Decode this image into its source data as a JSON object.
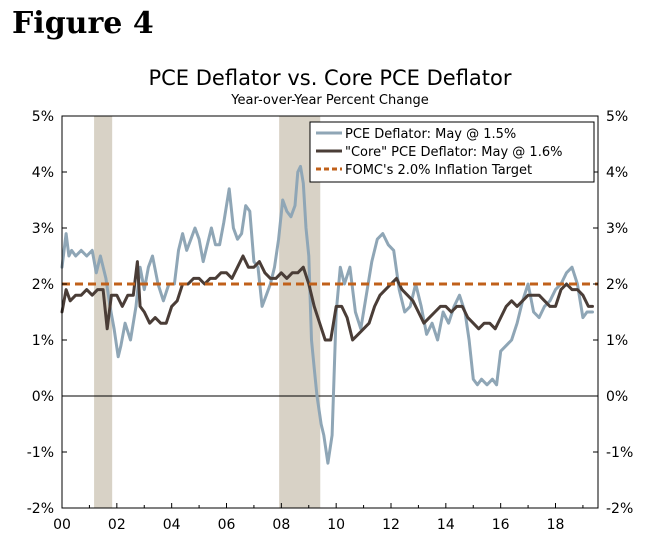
{
  "figure_label": "Figure 4",
  "colors": {
    "pce": "#8fa6b6",
    "core": "#4a3d37",
    "target": "#c0601a",
    "recession": "#d8d2c6",
    "axis": "#000000"
  },
  "chart_data": {
    "type": "line",
    "title": "PCE Deflator vs. Core PCE Deflator",
    "subtitle": "Year-over-Year Percent Change",
    "xlabel": "",
    "ylabel": "",
    "xlim": [
      2000.0,
      2019.55
    ],
    "ylim": [
      -2,
      5
    ],
    "y_ticks": [
      5,
      4,
      3,
      2,
      1,
      0,
      -1,
      -2
    ],
    "y_tick_labels_left": [
      "5%",
      "4%",
      "3%",
      "2%",
      "1%",
      "0%",
      "-1%",
      "-2%"
    ],
    "y_tick_labels_right": [
      "5%",
      "4%",
      "3%",
      "2%",
      "1%",
      "0%",
      "-1%",
      "-2%"
    ],
    "x_ticks": [
      2000,
      2002,
      2004,
      2006,
      2008,
      2010,
      2012,
      2014,
      2016,
      2018
    ],
    "x_tick_labels": [
      "00",
      "02",
      "04",
      "06",
      "08",
      "10",
      "12",
      "14",
      "16",
      "18"
    ],
    "recessions": [
      [
        2001.17,
        2001.83
      ],
      [
        2007.92,
        2009.42
      ]
    ],
    "legend": {
      "position": "top-right",
      "entries": [
        {
          "key": "pce",
          "label": "PCE Deflator: May @ 1.5%"
        },
        {
          "key": "core",
          "label": "\"Core\" PCE Deflator: May @ 1.6%"
        },
        {
          "key": "target",
          "label": "FOMC's 2.0% Inflation Target"
        }
      ]
    },
    "series": [
      {
        "key": "pce",
        "name": "PCE Deflator",
        "x": [
          2000.0,
          2000.15,
          2000.25,
          2000.35,
          2000.5,
          2000.7,
          2000.9,
          2001.1,
          2001.25,
          2001.4,
          2001.6,
          2001.75,
          2001.9,
          2002.05,
          2002.15,
          2002.3,
          2002.5,
          2002.7,
          2002.85,
          2003.0,
          2003.15,
          2003.3,
          2003.5,
          2003.7,
          2003.9,
          2004.1,
          2004.25,
          2004.4,
          2004.55,
          2004.7,
          2004.85,
          2005.0,
          2005.15,
          2005.3,
          2005.45,
          2005.6,
          2005.75,
          2005.9,
          2006.1,
          2006.25,
          2006.4,
          2006.55,
          2006.7,
          2006.85,
          2007.0,
          2007.15,
          2007.3,
          2007.45,
          2007.6,
          2007.75,
          2007.9,
          2008.05,
          2008.2,
          2008.35,
          2008.5,
          2008.6,
          2008.7,
          2008.8,
          2008.9,
          2009.0,
          2009.1,
          2009.2,
          2009.3,
          2009.45,
          2009.55,
          2009.7,
          2009.85,
          2010.0,
          2010.15,
          2010.3,
          2010.5,
          2010.7,
          2010.9,
          2011.1,
          2011.3,
          2011.5,
          2011.7,
          2011.9,
          2012.1,
          2012.3,
          2012.5,
          2012.7,
          2012.9,
          2013.1,
          2013.3,
          2013.5,
          2013.7,
          2013.9,
          2014.1,
          2014.3,
          2014.5,
          2014.7,
          2014.85,
          2015.0,
          2015.15,
          2015.3,
          2015.5,
          2015.7,
          2015.85,
          2016.0,
          2016.2,
          2016.4,
          2016.6,
          2016.8,
          2017.0,
          2017.2,
          2017.4,
          2017.6,
          2017.8,
          2018.0,
          2018.2,
          2018.4,
          2018.6,
          2018.8,
          2019.0,
          2019.15,
          2019.35
        ],
        "values": [
          2.3,
          2.9,
          2.5,
          2.6,
          2.5,
          2.6,
          2.5,
          2.6,
          2.2,
          2.5,
          2.1,
          1.6,
          1.2,
          0.7,
          0.9,
          1.3,
          1.0,
          1.6,
          2.3,
          1.9,
          2.3,
          2.5,
          2.0,
          1.7,
          2.0,
          2.0,
          2.6,
          2.9,
          2.6,
          2.8,
          3.0,
          2.8,
          2.4,
          2.7,
          3.0,
          2.7,
          2.7,
          3.1,
          3.7,
          3.0,
          2.8,
          2.9,
          3.4,
          3.3,
          2.4,
          2.3,
          1.6,
          1.8,
          2.0,
          2.3,
          2.8,
          3.5,
          3.3,
          3.2,
          3.4,
          4.0,
          4.1,
          3.8,
          3.0,
          2.5,
          1.0,
          0.5,
          0.0,
          -0.5,
          -0.7,
          -1.2,
          -0.7,
          1.5,
          2.3,
          2.0,
          2.3,
          1.5,
          1.2,
          1.8,
          2.4,
          2.8,
          2.9,
          2.7,
          2.6,
          1.9,
          1.5,
          1.6,
          2.0,
          1.6,
          1.1,
          1.3,
          1.0,
          1.5,
          1.3,
          1.6,
          1.8,
          1.5,
          1.0,
          0.3,
          0.2,
          0.3,
          0.2,
          0.3,
          0.2,
          0.8,
          0.9,
          1.0,
          1.3,
          1.7,
          2.0,
          1.5,
          1.4,
          1.6,
          1.7,
          1.9,
          2.0,
          2.2,
          2.3,
          2.0,
          1.4,
          1.5,
          1.5
        ]
      },
      {
        "key": "core",
        "name": "\"Core\" PCE Deflator",
        "x": [
          2000.0,
          2000.15,
          2000.3,
          2000.5,
          2000.7,
          2000.9,
          2001.1,
          2001.3,
          2001.5,
          2001.65,
          2001.8,
          2002.0,
          2002.2,
          2002.4,
          2002.6,
          2002.75,
          2002.85,
          2003.0,
          2003.2,
          2003.4,
          2003.6,
          2003.8,
          2004.0,
          2004.2,
          2004.4,
          2004.6,
          2004.8,
          2005.0,
          2005.2,
          2005.4,
          2005.6,
          2005.8,
          2006.0,
          2006.2,
          2006.4,
          2006.6,
          2006.8,
          2007.0,
          2007.2,
          2007.4,
          2007.6,
          2007.8,
          2008.0,
          2008.2,
          2008.4,
          2008.6,
          2008.8,
          2009.0,
          2009.2,
          2009.4,
          2009.6,
          2009.8,
          2010.0,
          2010.2,
          2010.4,
          2010.6,
          2010.8,
          2011.0,
          2011.2,
          2011.4,
          2011.6,
          2011.8,
          2012.0,
          2012.2,
          2012.4,
          2012.6,
          2012.8,
          2013.0,
          2013.2,
          2013.4,
          2013.6,
          2013.8,
          2014.0,
          2014.2,
          2014.4,
          2014.6,
          2014.8,
          2015.0,
          2015.2,
          2015.4,
          2015.6,
          2015.8,
          2016.0,
          2016.2,
          2016.4,
          2016.6,
          2016.8,
          2017.0,
          2017.2,
          2017.4,
          2017.6,
          2017.8,
          2018.0,
          2018.2,
          2018.4,
          2018.6,
          2018.8,
          2019.0,
          2019.2,
          2019.35
        ],
        "values": [
          1.5,
          1.9,
          1.7,
          1.8,
          1.8,
          1.9,
          1.8,
          1.9,
          1.9,
          1.2,
          1.8,
          1.8,
          1.6,
          1.8,
          1.8,
          2.4,
          1.6,
          1.5,
          1.3,
          1.4,
          1.3,
          1.3,
          1.6,
          1.7,
          2.0,
          2.0,
          2.1,
          2.1,
          2.0,
          2.1,
          2.1,
          2.2,
          2.2,
          2.1,
          2.3,
          2.5,
          2.3,
          2.3,
          2.4,
          2.2,
          2.1,
          2.1,
          2.2,
          2.1,
          2.2,
          2.2,
          2.3,
          2.0,
          1.6,
          1.3,
          1.0,
          1.0,
          1.6,
          1.6,
          1.4,
          1.0,
          1.1,
          1.2,
          1.3,
          1.6,
          1.8,
          1.9,
          2.0,
          2.1,
          1.9,
          1.8,
          1.7,
          1.5,
          1.3,
          1.4,
          1.5,
          1.6,
          1.6,
          1.5,
          1.6,
          1.6,
          1.4,
          1.3,
          1.2,
          1.3,
          1.3,
          1.2,
          1.4,
          1.6,
          1.7,
          1.6,
          1.7,
          1.8,
          1.8,
          1.8,
          1.7,
          1.6,
          1.6,
          1.9,
          2.0,
          1.9,
          1.9,
          1.8,
          1.6,
          1.6
        ]
      },
      {
        "key": "target",
        "name": "FOMC's 2.0% Inflation Target",
        "x": [
          2000.0,
          2019.55
        ],
        "values": [
          2.0,
          2.0
        ]
      }
    ]
  }
}
